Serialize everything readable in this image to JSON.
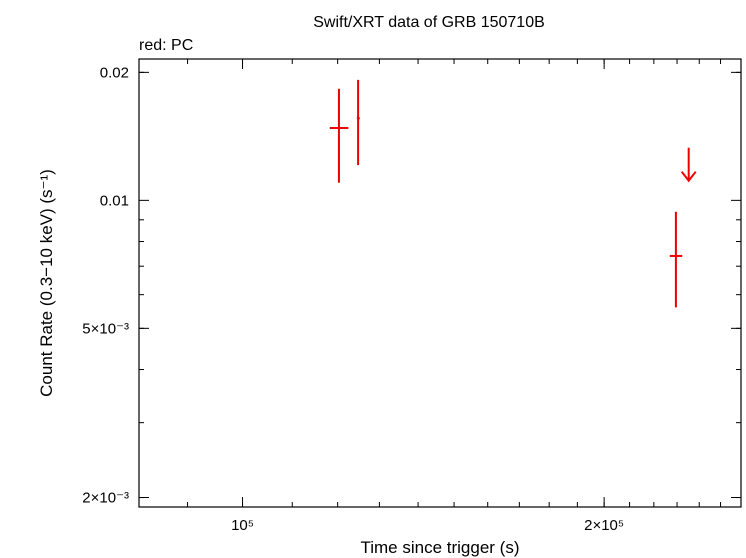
{
  "chart_data": {
    "type": "scatter",
    "title": "Swift/XRT data of GRB 150710B",
    "subtitle": "red: PC",
    "xlabel": "Time since trigger (s)",
    "ylabel": "Count Rate (0.3−10 keV) (s⁻¹)",
    "xscale": "log",
    "yscale": "log",
    "xlim": [
      82000,
      260000
    ],
    "ylim": [
      0.0019,
      0.0215
    ],
    "x_ticks": [
      {
        "value": 100000,
        "label": "10⁵"
      },
      {
        "value": 200000,
        "label": "2×10⁵"
      }
    ],
    "y_ticks": [
      {
        "value": 0.002,
        "label": "2×10⁻³"
      },
      {
        "value": 0.005,
        "label": "5×10⁻³"
      },
      {
        "value": 0.01,
        "label": "0.01"
      },
      {
        "value": 0.02,
        "label": "0.02"
      }
    ],
    "grid": false,
    "series": [
      {
        "color": "#ee0000",
        "points": [
          {
            "x": 120300,
            "xerr_lo": 2100,
            "xerr_hi": 2200,
            "y": 0.0148,
            "y_lo": 0.011,
            "y_hi": 0.0183
          },
          {
            "x": 124800,
            "xerr_lo": 300,
            "xerr_hi": 400,
            "y": 0.0156,
            "y_lo": 0.0121,
            "y_hi": 0.0192
          },
          {
            "x": 229500,
            "xerr_lo": 2700,
            "xerr_hi": 2800,
            "y": 0.0074,
            "y_lo": 0.0056,
            "y_hi": 0.0094
          }
        ],
        "upper_limits": [
          {
            "x": 235200,
            "y": 0.0133
          }
        ]
      }
    ]
  }
}
